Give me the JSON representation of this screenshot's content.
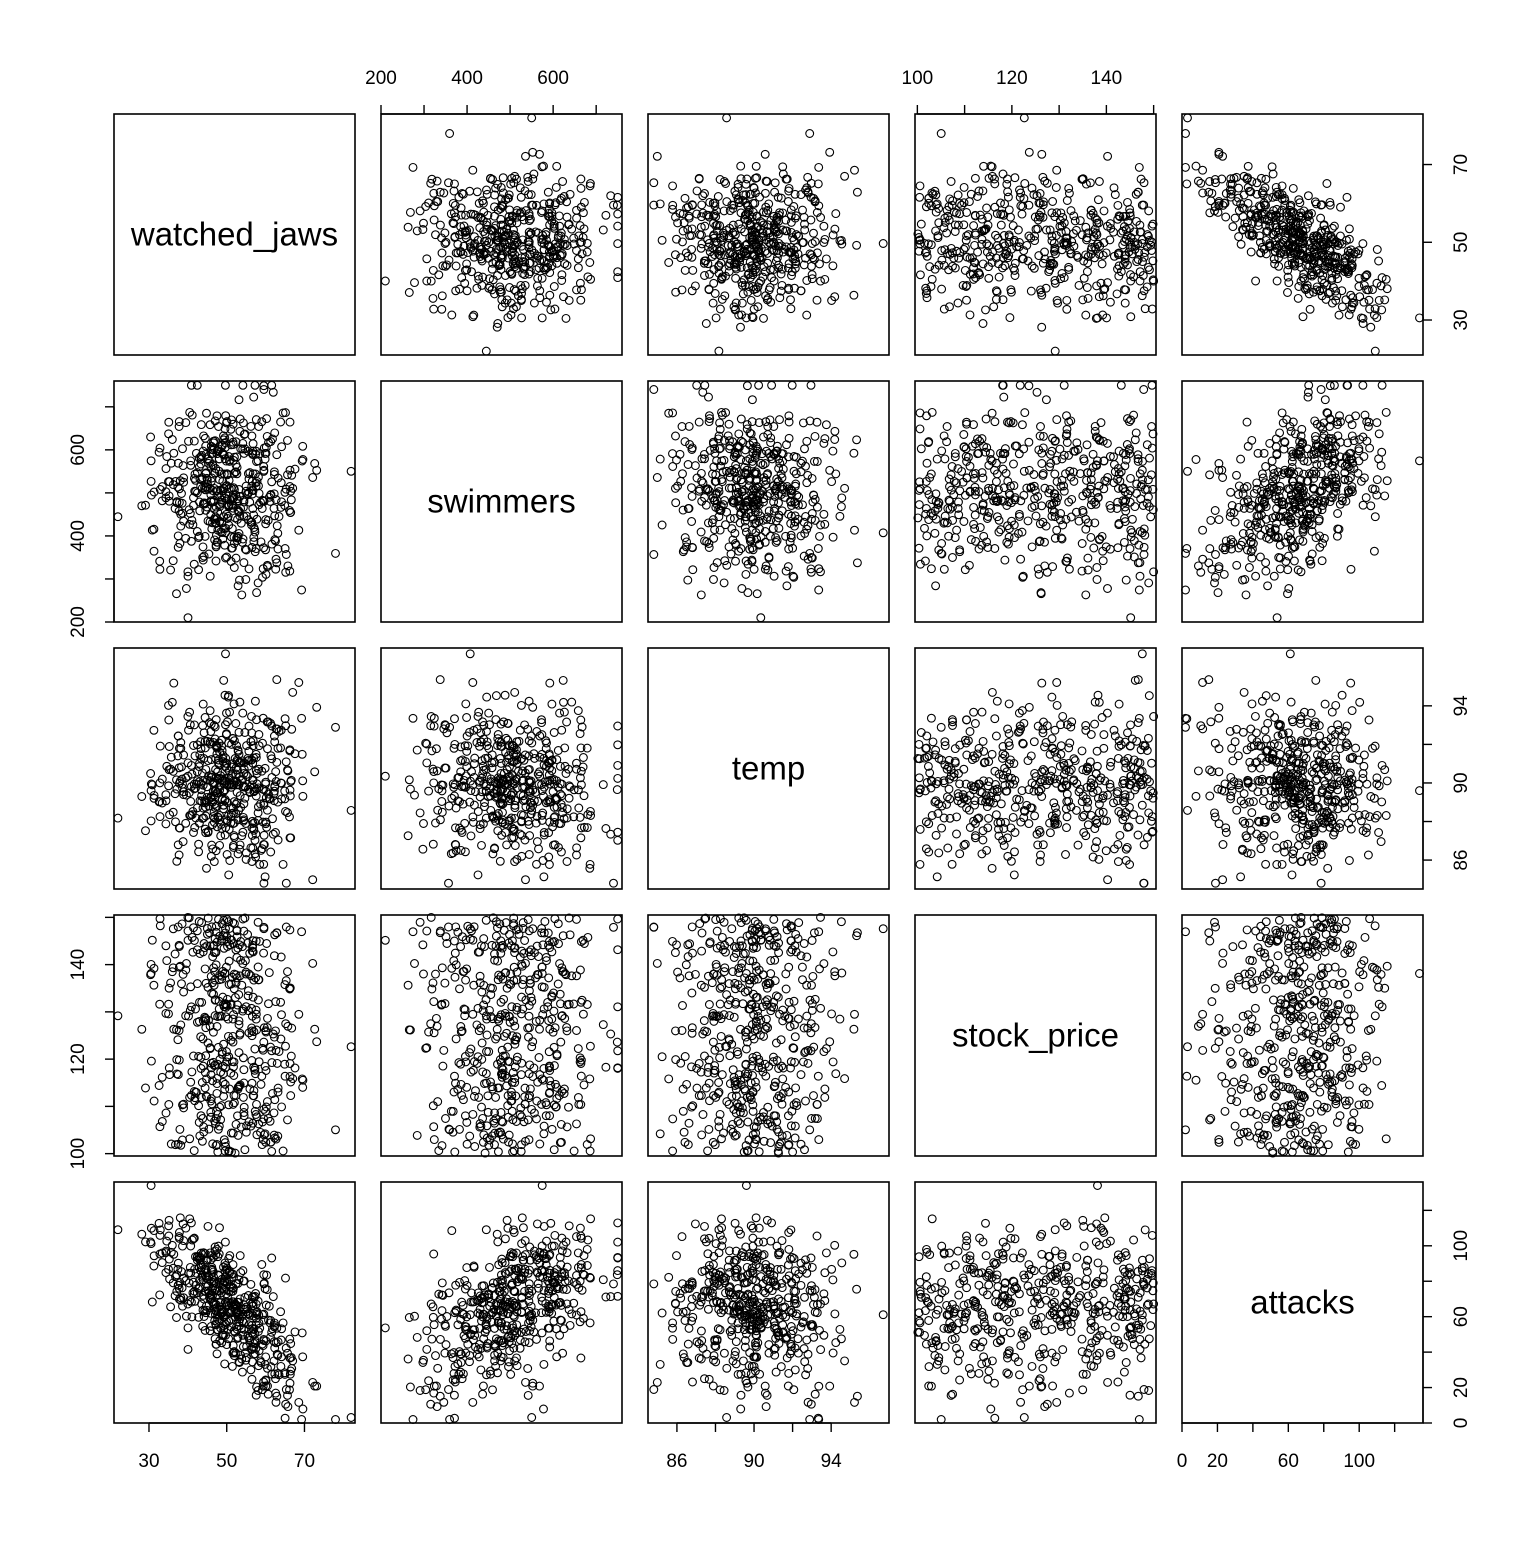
{
  "chart_data": {
    "type": "scatter",
    "subtype": "pairs-matrix",
    "variables": [
      {
        "name": "watched_jaws",
        "range": [
          21,
          83
        ],
        "ticks": [
          30,
          50,
          70
        ]
      },
      {
        "name": "swimmers",
        "range": [
          200,
          760
        ],
        "ticks": [
          200,
          400,
          600
        ],
        "minor_ticks": [
          300,
          500,
          700
        ]
      },
      {
        "name": "temp",
        "range": [
          84.5,
          97
        ],
        "ticks": [
          86,
          90,
          94
        ],
        "minor_ticks": [
          88,
          92
        ]
      },
      {
        "name": "stock_price",
        "range": [
          99.5,
          150.5
        ],
        "ticks": [
          100,
          120,
          140
        ],
        "minor_ticks": [
          110,
          130,
          150
        ]
      },
      {
        "name": "attacks",
        "range": [
          0,
          136
        ],
        "ticks": [
          0,
          20,
          60,
          100
        ],
        "minor_ticks": [
          40,
          80,
          120
        ]
      }
    ],
    "axis_placement": {
      "x_bottom": [
        "watched_jaws",
        "temp",
        "attacks"
      ],
      "x_top": [
        "swimmers",
        "stock_price"
      ],
      "y_left": [
        "swimmers",
        "stock_price"
      ],
      "y_right": [
        "watched_jaws",
        "temp",
        "attacks"
      ]
    },
    "n_points": 500,
    "correlations": {
      "watched_jaws~attacks": -0.72,
      "swimmers~attacks": 0.5,
      "temp~attacks": -0.02,
      "stock_price~attacks": 0.0,
      "watched_jaws~swimmers": 0.0,
      "watched_jaws~temp": 0.0,
      "watched_jaws~stock_price": 0.0,
      "swimmers~temp": 0.0,
      "swimmers~stock_price": 0.0,
      "temp~stock_price": 0.0
    },
    "marginals": {
      "watched_jaws": {
        "mean": 50,
        "sd": 9
      },
      "swimmers": {
        "mean": 500,
        "sd": 100
      },
      "temp": {
        "mean": 90,
        "sd": 2
      },
      "stock_price": {
        "distribution": "uniform",
        "min": 100,
        "max": 150
      },
      "attacks": {
        "mean": 66,
        "sd": 24
      }
    },
    "marker": "open-circle",
    "grid": false,
    "legend": "none"
  }
}
